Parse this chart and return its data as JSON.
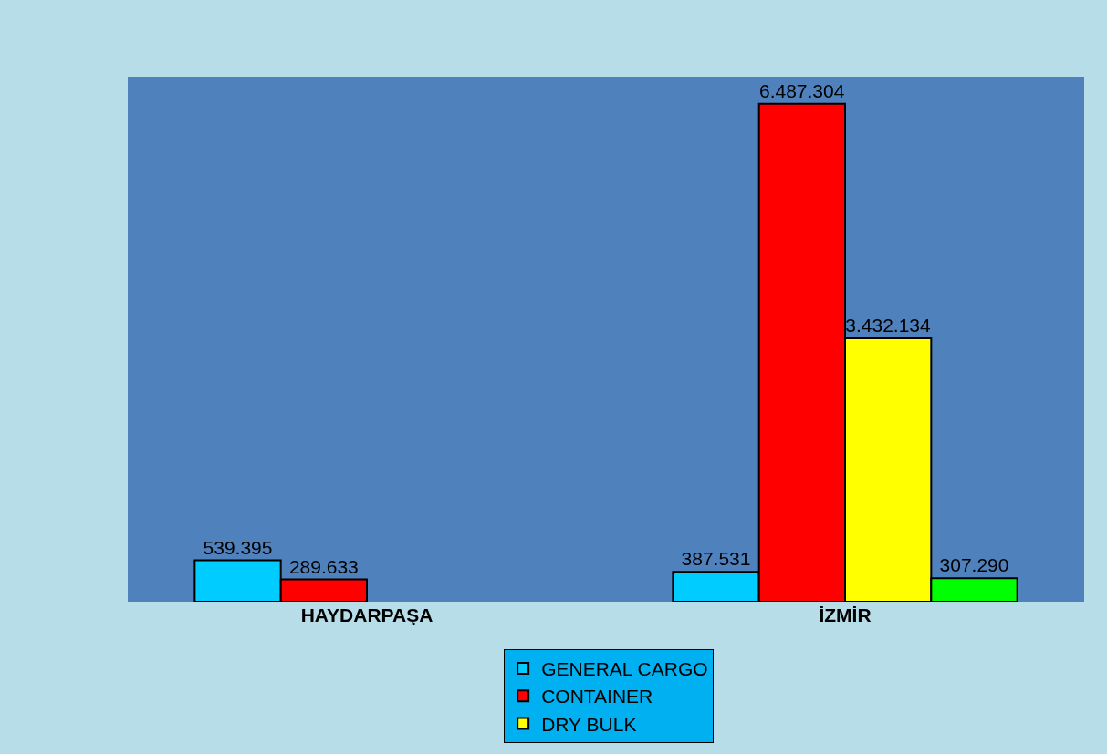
{
  "chart_data": {
    "type": "bar",
    "categories": [
      "HAYDARPAŞA",
      "İZMİR"
    ],
    "series": [
      {
        "name": "GENERAL CARGO",
        "color": "#00ccff",
        "values": [
          539395,
          387531
        ],
        "value_labels": [
          "539.395",
          "387.531"
        ]
      },
      {
        "name": "CONTAINER",
        "color": "#ff0000",
        "values": [
          289633,
          6487304
        ],
        "value_labels": [
          "289.633",
          "6.487.304"
        ]
      },
      {
        "name": "DRY BULK",
        "color": "#ffff00",
        "values": [
          null,
          3432134
        ],
        "value_labels": [
          null,
          "3.432.134"
        ]
      },
      {
        "color": "#00ff00",
        "values": [
          null,
          307290
        ],
        "value_labels": [
          null,
          "307.290"
        ]
      }
    ],
    "legend": "bottom"
  }
}
